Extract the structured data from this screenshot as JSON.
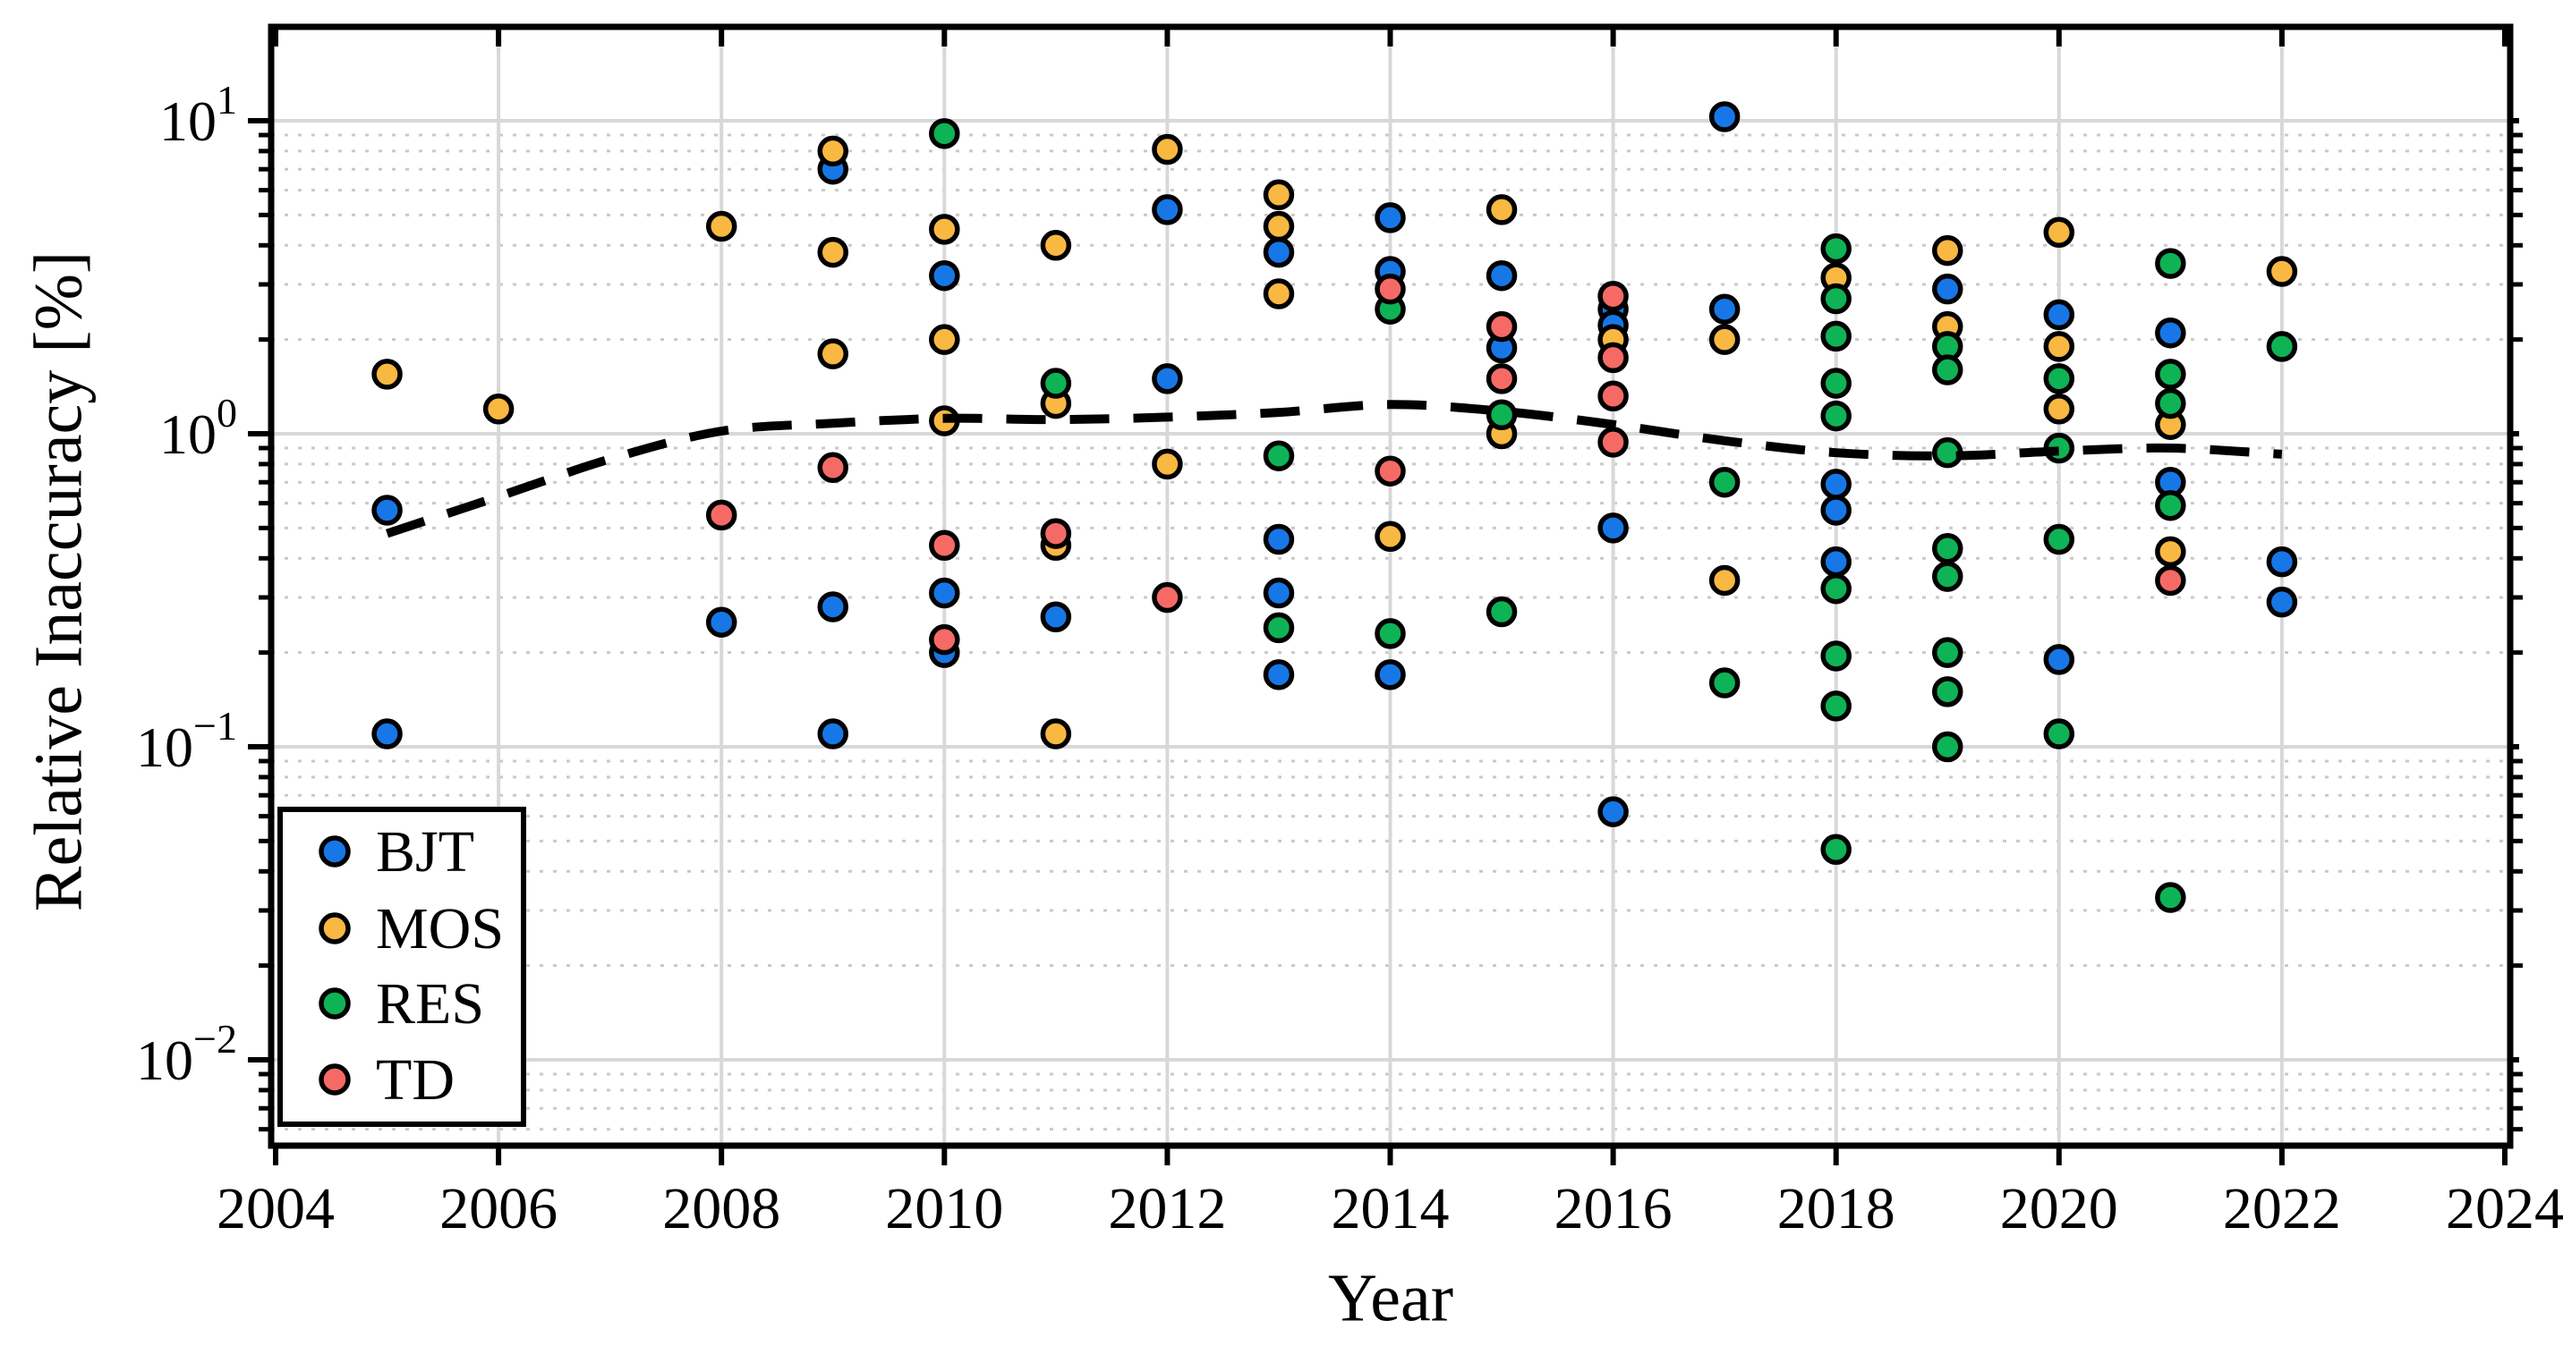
{
  "figure": {
    "xlabel": "Year",
    "ylabel": "Relative Inaccuracy [%]"
  },
  "chart_data": {
    "type": "scatter",
    "title": "",
    "xlabel": "Year",
    "ylabel": "Relative Inaccuracy [%]",
    "x_axis": {
      "scale": "linear",
      "min": 2004,
      "max": 2024,
      "ticks": [
        2004,
        2006,
        2008,
        2010,
        2012,
        2014,
        2016,
        2018,
        2020,
        2022,
        2024
      ]
    },
    "y_axis": {
      "scale": "log",
      "min": 0.005,
      "max": 20,
      "tick_labels": [
        {
          "mantissa": "10",
          "exponent": "1",
          "value": 10
        },
        {
          "mantissa": "10",
          "exponent": "0",
          "value": 1
        },
        {
          "mantissa": "10",
          "exponent": "−1",
          "value": 0.1
        },
        {
          "mantissa": "10",
          "exponent": "−2",
          "value": 0.01
        }
      ]
    },
    "grid": {
      "major_solid": true,
      "minor_dotted": true
    },
    "legend": {
      "position": "lower-left",
      "items": [
        "BJT",
        "MOS",
        "RES",
        "TD"
      ]
    },
    "series": [
      {
        "name": "BJT",
        "color": "#1777E6",
        "points": [
          [
            2005,
            0.57
          ],
          [
            2005,
            0.11
          ],
          [
            2008,
            0.25
          ],
          [
            2009,
            7.0
          ],
          [
            2009,
            0.28
          ],
          [
            2009,
            0.11
          ],
          [
            2010,
            3.2
          ],
          [
            2010,
            0.31
          ],
          [
            2010,
            0.2
          ],
          [
            2011,
            0.26
          ],
          [
            2012,
            5.2
          ],
          [
            2012,
            1.5
          ],
          [
            2013,
            3.8
          ],
          [
            2013,
            0.46
          ],
          [
            2013,
            0.31
          ],
          [
            2013,
            0.17
          ],
          [
            2014,
            4.9
          ],
          [
            2014,
            3.3
          ],
          [
            2014,
            0.17
          ],
          [
            2015,
            3.2
          ],
          [
            2015,
            1.88
          ],
          [
            2016,
            2.5
          ],
          [
            2016,
            2.22
          ],
          [
            2016,
            0.5
          ],
          [
            2016,
            0.062
          ],
          [
            2017,
            10.3
          ],
          [
            2017,
            2.5
          ],
          [
            2018,
            0.69
          ],
          [
            2018,
            0.57
          ],
          [
            2018,
            0.39
          ],
          [
            2019,
            2.9
          ],
          [
            2020,
            2.4
          ],
          [
            2020,
            0.19
          ],
          [
            2021,
            2.1
          ],
          [
            2021,
            0.7
          ],
          [
            2022,
            0.39
          ],
          [
            2022,
            0.29
          ]
        ]
      },
      {
        "name": "MOS",
        "color": "#F8B842",
        "points": [
          [
            2005,
            1.55
          ],
          [
            2006,
            1.2
          ],
          [
            2008,
            4.6
          ],
          [
            2009,
            8.0
          ],
          [
            2009,
            3.8
          ],
          [
            2009,
            1.8
          ],
          [
            2010,
            4.5
          ],
          [
            2010,
            2.0
          ],
          [
            2010,
            1.1
          ],
          [
            2011,
            4.0
          ],
          [
            2011,
            1.25
          ],
          [
            2011,
            0.44
          ],
          [
            2011,
            0.11
          ],
          [
            2012,
            8.1
          ],
          [
            2012,
            0.8
          ],
          [
            2013,
            5.8
          ],
          [
            2013,
            4.6
          ],
          [
            2013,
            2.8
          ],
          [
            2014,
            0.47
          ],
          [
            2015,
            5.2
          ],
          [
            2015,
            1.0
          ],
          [
            2016,
            2.0
          ],
          [
            2017,
            2.0
          ],
          [
            2017,
            0.34
          ],
          [
            2018,
            3.15
          ],
          [
            2019,
            3.85
          ],
          [
            2019,
            2.2
          ],
          [
            2020,
            4.4
          ],
          [
            2020,
            1.9
          ],
          [
            2020,
            1.2
          ],
          [
            2021,
            1.07
          ],
          [
            2021,
            0.42
          ],
          [
            2022,
            3.3
          ]
        ]
      },
      {
        "name": "RES",
        "color": "#0EB355",
        "points": [
          [
            2010,
            9.1
          ],
          [
            2011,
            1.45
          ],
          [
            2013,
            0.85
          ],
          [
            2013,
            0.24
          ],
          [
            2014,
            2.5
          ],
          [
            2014,
            0.23
          ],
          [
            2015,
            1.15
          ],
          [
            2015,
            0.27
          ],
          [
            2017,
            0.7
          ],
          [
            2017,
            0.16
          ],
          [
            2018,
            3.9
          ],
          [
            2018,
            2.7
          ],
          [
            2018,
            2.05
          ],
          [
            2018,
            1.45
          ],
          [
            2018,
            1.14
          ],
          [
            2018,
            0.32
          ],
          [
            2018,
            0.195
          ],
          [
            2018,
            0.135
          ],
          [
            2018,
            0.047
          ],
          [
            2019,
            1.9
          ],
          [
            2019,
            1.6
          ],
          [
            2019,
            0.87
          ],
          [
            2019,
            0.43
          ],
          [
            2019,
            0.35
          ],
          [
            2019,
            0.2
          ],
          [
            2019,
            0.15
          ],
          [
            2019,
            0.1
          ],
          [
            2020,
            1.5
          ],
          [
            2020,
            0.9
          ],
          [
            2020,
            0.46
          ],
          [
            2020,
            0.11
          ],
          [
            2021,
            3.5
          ],
          [
            2021,
            1.55
          ],
          [
            2021,
            1.25
          ],
          [
            2021,
            0.59
          ],
          [
            2021,
            0.033
          ],
          [
            2022,
            1.9
          ]
        ]
      },
      {
        "name": "TD",
        "color": "#F66A66",
        "points": [
          [
            2008,
            0.55
          ],
          [
            2009,
            0.78
          ],
          [
            2010,
            0.44
          ],
          [
            2010,
            0.22
          ],
          [
            2011,
            0.48
          ],
          [
            2012,
            0.3
          ],
          [
            2014,
            2.9
          ],
          [
            2014,
            0.76
          ],
          [
            2015,
            2.2
          ],
          [
            2015,
            1.5
          ],
          [
            2016,
            2.75
          ],
          [
            2016,
            1.75
          ],
          [
            2016,
            1.32
          ],
          [
            2016,
            0.94
          ],
          [
            2021,
            0.34
          ]
        ]
      }
    ],
    "trend_line": {
      "style": "dashed",
      "color": "#000000",
      "points": [
        [
          2005,
          0.48
        ],
        [
          2006,
          0.63
        ],
        [
          2007,
          0.83
        ],
        [
          2008,
          1.02
        ],
        [
          2009,
          1.08
        ],
        [
          2010,
          1.12
        ],
        [
          2011,
          1.11
        ],
        [
          2012,
          1.13
        ],
        [
          2013,
          1.17
        ],
        [
          2014,
          1.24
        ],
        [
          2015,
          1.18
        ],
        [
          2016,
          1.07
        ],
        [
          2017,
          0.95
        ],
        [
          2018,
          0.87
        ],
        [
          2019,
          0.85
        ],
        [
          2020,
          0.88
        ],
        [
          2021,
          0.9
        ],
        [
          2022,
          0.86
        ]
      ]
    }
  },
  "colors": {
    "background": "#FFFFFF",
    "axis": "#000000",
    "grid_major": "#D8D8D8",
    "grid_minor": "#C9C9C9",
    "marker_edge": "#000000",
    "text": "#000000"
  }
}
